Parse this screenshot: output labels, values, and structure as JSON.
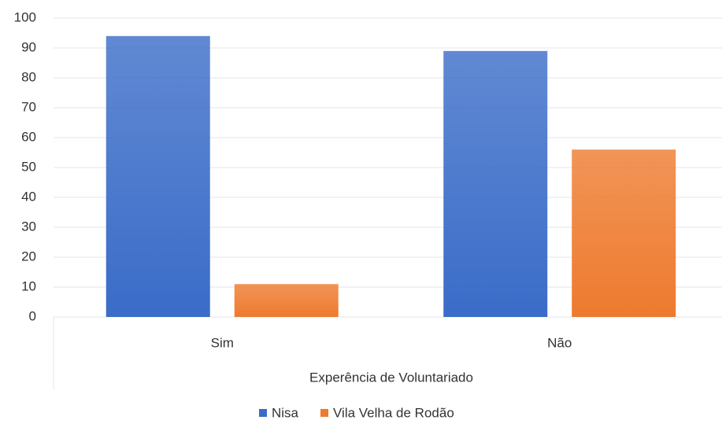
{
  "chart_data": {
    "type": "bar",
    "categories": [
      "Sim",
      "Não"
    ],
    "series": [
      {
        "name": "Nisa",
        "color": "#3a6cc8",
        "values": [
          94,
          89
        ]
      },
      {
        "name": "Vila Velha de Rodão",
        "color": "#ee7a2e",
        "values": [
          11,
          56
        ]
      }
    ],
    "x_label": "Experência de Voluntariado",
    "ylim": [
      0,
      100
    ],
    "yticks": [
      0,
      10,
      20,
      30,
      40,
      50,
      60,
      70,
      80,
      90,
      100
    ],
    "grid": true,
    "legend": "bottom"
  }
}
